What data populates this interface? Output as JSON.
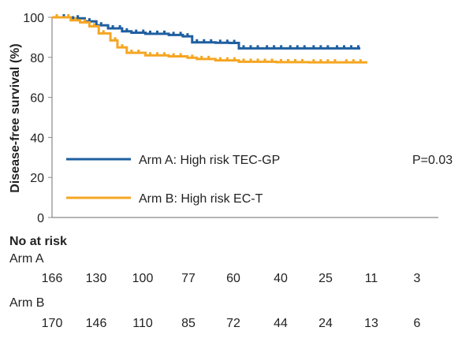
{
  "chart_data": {
    "type": "line",
    "ylabel": "Disease-free survival (%)",
    "ylim": [
      0,
      100
    ],
    "yticks": [
      0,
      20,
      40,
      60,
      80,
      100
    ],
    "x_range": [
      0,
      8
    ],
    "annotation": "P=0.03",
    "series": [
      {
        "name": "Arm A: High risk TEC-GP",
        "color": "#1f5fa0",
        "points": [
          [
            0,
            100
          ],
          [
            0.33,
            100
          ],
          [
            0.45,
            99.5
          ],
          [
            0.7,
            98
          ],
          [
            0.95,
            96
          ],
          [
            1.2,
            94.5
          ],
          [
            1.5,
            93
          ],
          [
            1.7,
            92.3
          ],
          [
            2.0,
            91.8
          ],
          [
            2.5,
            91.2
          ],
          [
            2.8,
            90.5
          ],
          [
            3.0,
            87.5
          ],
          [
            3.5,
            87.3
          ],
          [
            3.8,
            87.2
          ],
          [
            4.0,
            84.5
          ],
          [
            4.5,
            84.5
          ],
          [
            5.0,
            84.5
          ],
          [
            5.5,
            84.5
          ],
          [
            6.0,
            84.5
          ],
          [
            6.6,
            84.5
          ]
        ]
      },
      {
        "name": "Arm B: High risk EC-T",
        "color": "#f5a623",
        "points": [
          [
            0,
            100
          ],
          [
            0.25,
            100
          ],
          [
            0.4,
            98.5
          ],
          [
            0.6,
            97.5
          ],
          [
            0.8,
            95.5
          ],
          [
            1.0,
            92
          ],
          [
            1.25,
            88.5
          ],
          [
            1.4,
            85
          ],
          [
            1.6,
            82.3
          ],
          [
            2.0,
            81
          ],
          [
            2.5,
            80.5
          ],
          [
            2.9,
            79.8
          ],
          [
            3.1,
            79.2
          ],
          [
            3.5,
            78.5
          ],
          [
            4.0,
            77.8
          ],
          [
            4.8,
            77.6
          ],
          [
            5.5,
            77.5
          ],
          [
            6.2,
            77.5
          ],
          [
            6.75,
            77.5
          ]
        ]
      }
    ],
    "at_risk": {
      "title": "No at risk",
      "arms": [
        {
          "label": "Arm A",
          "counts": [
            "166",
            "130",
            "100",
            "77",
            "60",
            "40",
            "25",
            "11",
            "3"
          ]
        },
        {
          "label": "Arm B",
          "counts": [
            "170",
            "146",
            "110",
            "85",
            "72",
            "44",
            "24",
            "13",
            "6"
          ]
        }
      ]
    }
  }
}
